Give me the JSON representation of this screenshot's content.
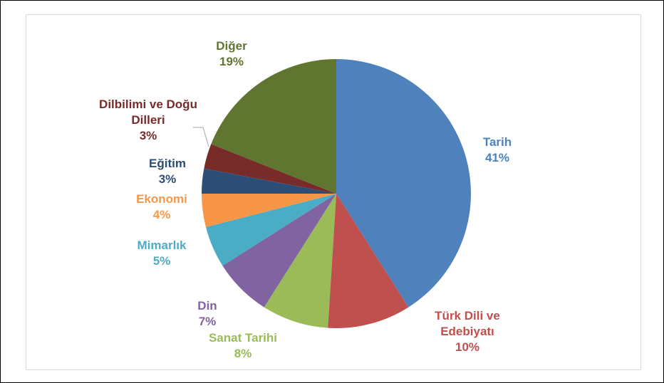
{
  "chart_data": {
    "type": "pie",
    "categories": [
      "Tarih",
      "Türk Dili ve Edebiyatı",
      "Sanat Tarihi",
      "Din",
      "Mimarlık",
      "Ekonomi",
      "Eğitim",
      "Dilbilimi ve Doğu Dilleri",
      "Diğer"
    ],
    "values": [
      41,
      10,
      8,
      7,
      5,
      4,
      3,
      3,
      19
    ],
    "value_labels": [
      "41%",
      "10%",
      "8%",
      "7%",
      "5%",
      "4%",
      "3%",
      "3%",
      "19%"
    ],
    "colors": [
      "#4f81bd",
      "#c0504d",
      "#9bbb59",
      "#8064a2",
      "#4bacc6",
      "#f79646",
      "#2c4d75",
      "#772c2a",
      "#5f7530"
    ]
  }
}
